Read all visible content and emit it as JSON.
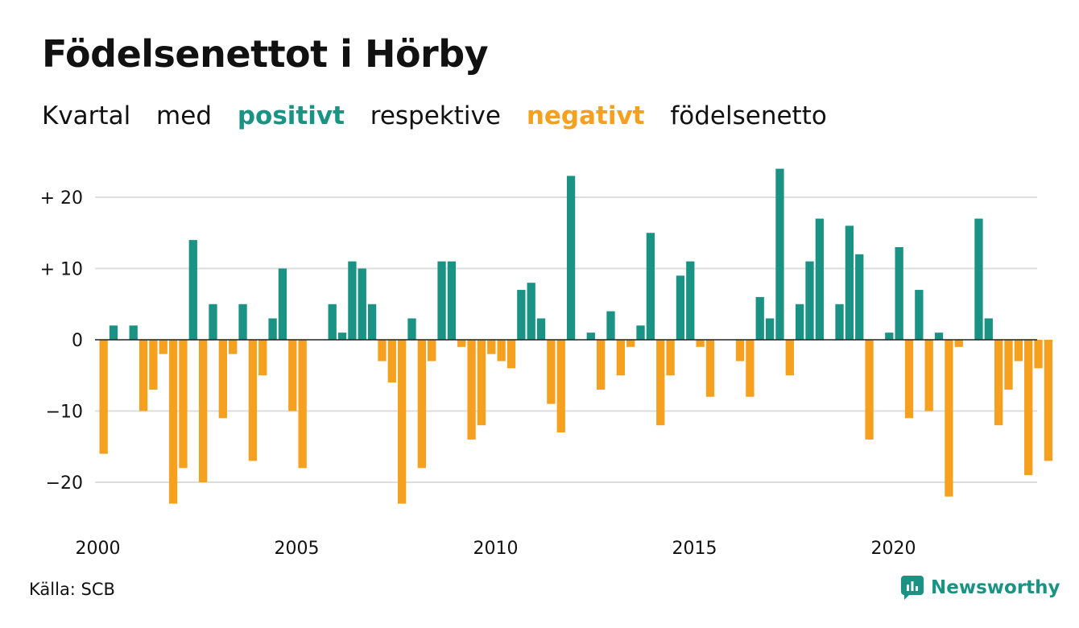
{
  "header": {
    "title": "Födelsenettot i Hörby",
    "subtitle": {
      "w1": "Kvartal",
      "w2": "med",
      "positive": "positivt",
      "w3": "respektive",
      "negative": "negativt",
      "w4": "födelsenetto"
    }
  },
  "footer": {
    "source": "Källa: SCB",
    "brand": "Newsworthy"
  },
  "colors": {
    "positive": "#1a9384",
    "negative": "#f5a01e",
    "grid": "#dddddd",
    "zero_line": "#222222"
  },
  "chart_data": {
    "type": "bar",
    "x_start": "2000 Q1",
    "frequency": "quarterly",
    "xtick_labels": [
      "2000",
      "2005",
      "2010",
      "2015",
      "2020"
    ],
    "ytick_labels": [
      "+ 20",
      "+ 10",
      "0",
      "−10",
      "−20"
    ],
    "ytick_values": [
      20,
      10,
      0,
      -10,
      -20
    ],
    "ylim": [
      -26,
      24
    ],
    "grid": true,
    "values": [
      -16,
      2,
      0,
      2,
      -10,
      -7,
      -2,
      -23,
      -18,
      14,
      -20,
      5,
      -11,
      -2,
      5,
      -17,
      -5,
      3,
      10,
      -10,
      -18,
      0,
      0,
      5,
      1,
      11,
      10,
      5,
      -3,
      -6,
      -23,
      3,
      -18,
      -3,
      11,
      11,
      -1,
      -14,
      -12,
      -2,
      -3,
      -4,
      7,
      8,
      3,
      -9,
      -13,
      23,
      0,
      1,
      -7,
      4,
      -5,
      -1,
      2,
      15,
      -12,
      -5,
      9,
      11,
      -1,
      -8,
      0,
      0,
      -3,
      -8,
      6,
      3,
      24,
      -5,
      5,
      11,
      17,
      0,
      5,
      16,
      12,
      -14,
      0,
      1,
      13,
      -11,
      7,
      -10,
      1,
      -22,
      -1,
      0,
      17,
      3,
      -12,
      -7,
      -3,
      -19,
      -4,
      -17
    ]
  }
}
